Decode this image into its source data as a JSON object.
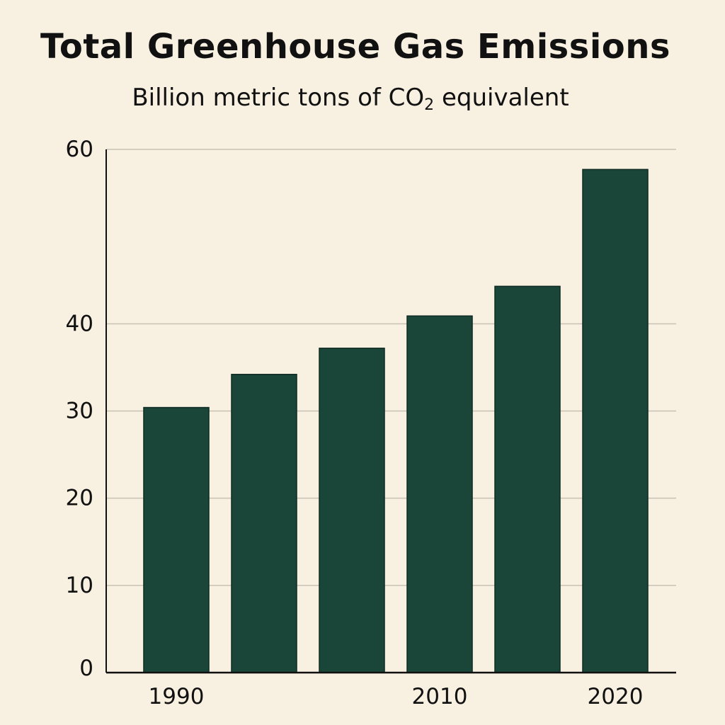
{
  "chart_data": {
    "type": "bar",
    "title": "Total Greenhouse Gas Emissions",
    "subtitle": {
      "before": "Billion metric tons of CO",
      "subscript": "2",
      "after": " equivalent"
    },
    "categories": [
      "1990",
      "",
      "",
      "2010",
      "",
      "2020"
    ],
    "values": [
      30.4,
      34.2,
      37.2,
      40.9,
      44.3,
      57.7
    ],
    "y_ticks": [
      0,
      10,
      20,
      30,
      40,
      60
    ],
    "x_tick_labels": [
      "1990",
      "2010",
      "2020"
    ],
    "ylim": [
      0,
      60
    ],
    "grid": true,
    "legend": false,
    "colors": {
      "bar": "#1a4639",
      "background": "#f8f0e0",
      "grid": "#c8c2b4",
      "axis": "#111111"
    }
  }
}
